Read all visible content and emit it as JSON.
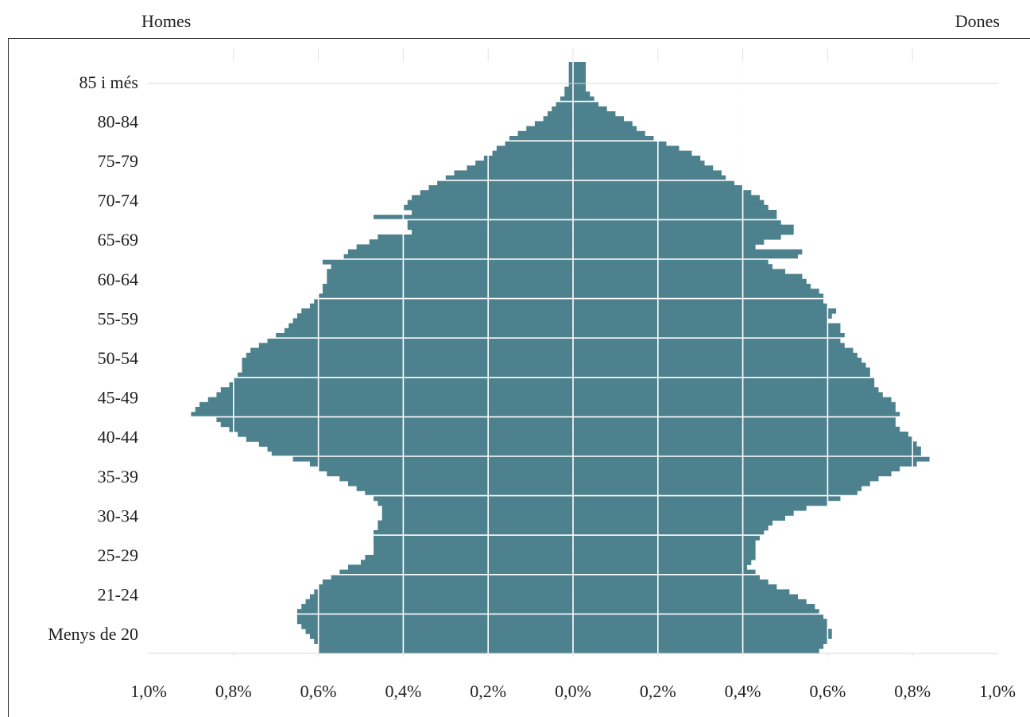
{
  "header": {
    "left": "Homes",
    "right": "Dones"
  },
  "colors": {
    "bar": "#4d818e",
    "grid": "#ffffff",
    "frame": "#333333"
  },
  "chart_data": {
    "type": "bar",
    "orientation": "horizontal",
    "subtype": "population-pyramid",
    "title": "",
    "xlabel": "",
    "ylabel": "",
    "xlim": [
      -1.0,
      1.0
    ],
    "x_unit": "%",
    "x_ticks": [
      "1,0%",
      "0,8%",
      "0,6%",
      "0,4%",
      "0,2%",
      "0,0%",
      "0,2%",
      "0,4%",
      "0,6%",
      "0,8%",
      "1,0%"
    ],
    "categories": [
      "85 i més",
      "80-84",
      "75-79",
      "70-74",
      "65-69",
      "60-64",
      "55-59",
      "50-54",
      "45-49",
      "40-44",
      "35-39",
      "30-34",
      "25-29",
      "21-24",
      "Menys de 20"
    ],
    "series": [
      {
        "name": "Homes",
        "values": [
          0.01,
          0.06,
          0.19,
          0.32,
          0.38,
          0.53,
          0.58,
          0.66,
          0.76,
          0.86,
          0.68,
          0.5,
          0.45,
          0.55,
          0.64
        ]
      },
      {
        "name": "Dones",
        "values": [
          0.03,
          0.12,
          0.34,
          0.47,
          0.49,
          0.59,
          0.62,
          0.69,
          0.76,
          0.82,
          0.67,
          0.5,
          0.43,
          0.54,
          0.6
        ]
      }
    ],
    "profile_by_single_age": {
      "age_order": "oldest_to_youngest",
      "men": [
        0.01,
        0.01,
        0.01,
        0.01,
        0.01,
        0.02,
        0.02,
        0.03,
        0.04,
        0.05,
        0.06,
        0.07,
        0.09,
        0.11,
        0.13,
        0.15,
        0.16,
        0.18,
        0.19,
        0.21,
        0.23,
        0.25,
        0.28,
        0.3,
        0.32,
        0.34,
        0.36,
        0.38,
        0.39,
        0.4,
        0.38,
        0.47,
        0.39,
        0.39,
        0.38,
        0.46,
        0.48,
        0.51,
        0.53,
        0.54,
        0.59,
        0.57,
        0.58,
        0.58,
        0.58,
        0.59,
        0.59,
        0.6,
        0.61,
        0.62,
        0.64,
        0.65,
        0.66,
        0.67,
        0.68,
        0.7,
        0.72,
        0.74,
        0.76,
        0.77,
        0.78,
        0.78,
        0.78,
        0.79,
        0.8,
        0.81,
        0.83,
        0.84,
        0.86,
        0.88,
        0.89,
        0.9,
        0.84,
        0.83,
        0.81,
        0.79,
        0.77,
        0.74,
        0.72,
        0.71,
        0.66,
        0.62,
        0.6,
        0.58,
        0.55,
        0.53,
        0.51,
        0.49,
        0.47,
        0.46,
        0.45,
        0.45,
        0.45,
        0.46,
        0.46,
        0.47,
        0.47,
        0.47,
        0.47,
        0.47,
        0.49,
        0.5,
        0.53,
        0.55,
        0.57,
        0.59,
        0.6,
        0.61,
        0.62,
        0.63,
        0.64,
        0.65,
        0.65,
        0.65,
        0.64,
        0.63,
        0.62,
        0.61,
        0.6,
        0.6
      ],
      "women": [
        0.03,
        0.03,
        0.03,
        0.03,
        0.03,
        0.03,
        0.04,
        0.05,
        0.06,
        0.08,
        0.1,
        0.12,
        0.14,
        0.15,
        0.17,
        0.19,
        0.22,
        0.25,
        0.28,
        0.3,
        0.31,
        0.33,
        0.35,
        0.36,
        0.38,
        0.4,
        0.42,
        0.44,
        0.45,
        0.46,
        0.48,
        0.48,
        0.49,
        0.52,
        0.52,
        0.49,
        0.45,
        0.43,
        0.54,
        0.53,
        0.46,
        0.47,
        0.5,
        0.54,
        0.55,
        0.56,
        0.58,
        0.59,
        0.59,
        0.6,
        0.62,
        0.61,
        0.6,
        0.63,
        0.63,
        0.64,
        0.63,
        0.64,
        0.66,
        0.67,
        0.68,
        0.69,
        0.7,
        0.7,
        0.71,
        0.71,
        0.72,
        0.73,
        0.75,
        0.76,
        0.76,
        0.77,
        0.76,
        0.76,
        0.77,
        0.79,
        0.8,
        0.81,
        0.82,
        0.82,
        0.84,
        0.81,
        0.77,
        0.75,
        0.72,
        0.7,
        0.68,
        0.67,
        0.63,
        0.6,
        0.55,
        0.52,
        0.5,
        0.47,
        0.46,
        0.45,
        0.44,
        0.43,
        0.43,
        0.43,
        0.43,
        0.42,
        0.41,
        0.43,
        0.44,
        0.46,
        0.48,
        0.51,
        0.53,
        0.55,
        0.57,
        0.58,
        0.59,
        0.6,
        0.6,
        0.61,
        0.61,
        0.6,
        0.59,
        0.58
      ]
    },
    "grid": true,
    "legend": "none"
  }
}
